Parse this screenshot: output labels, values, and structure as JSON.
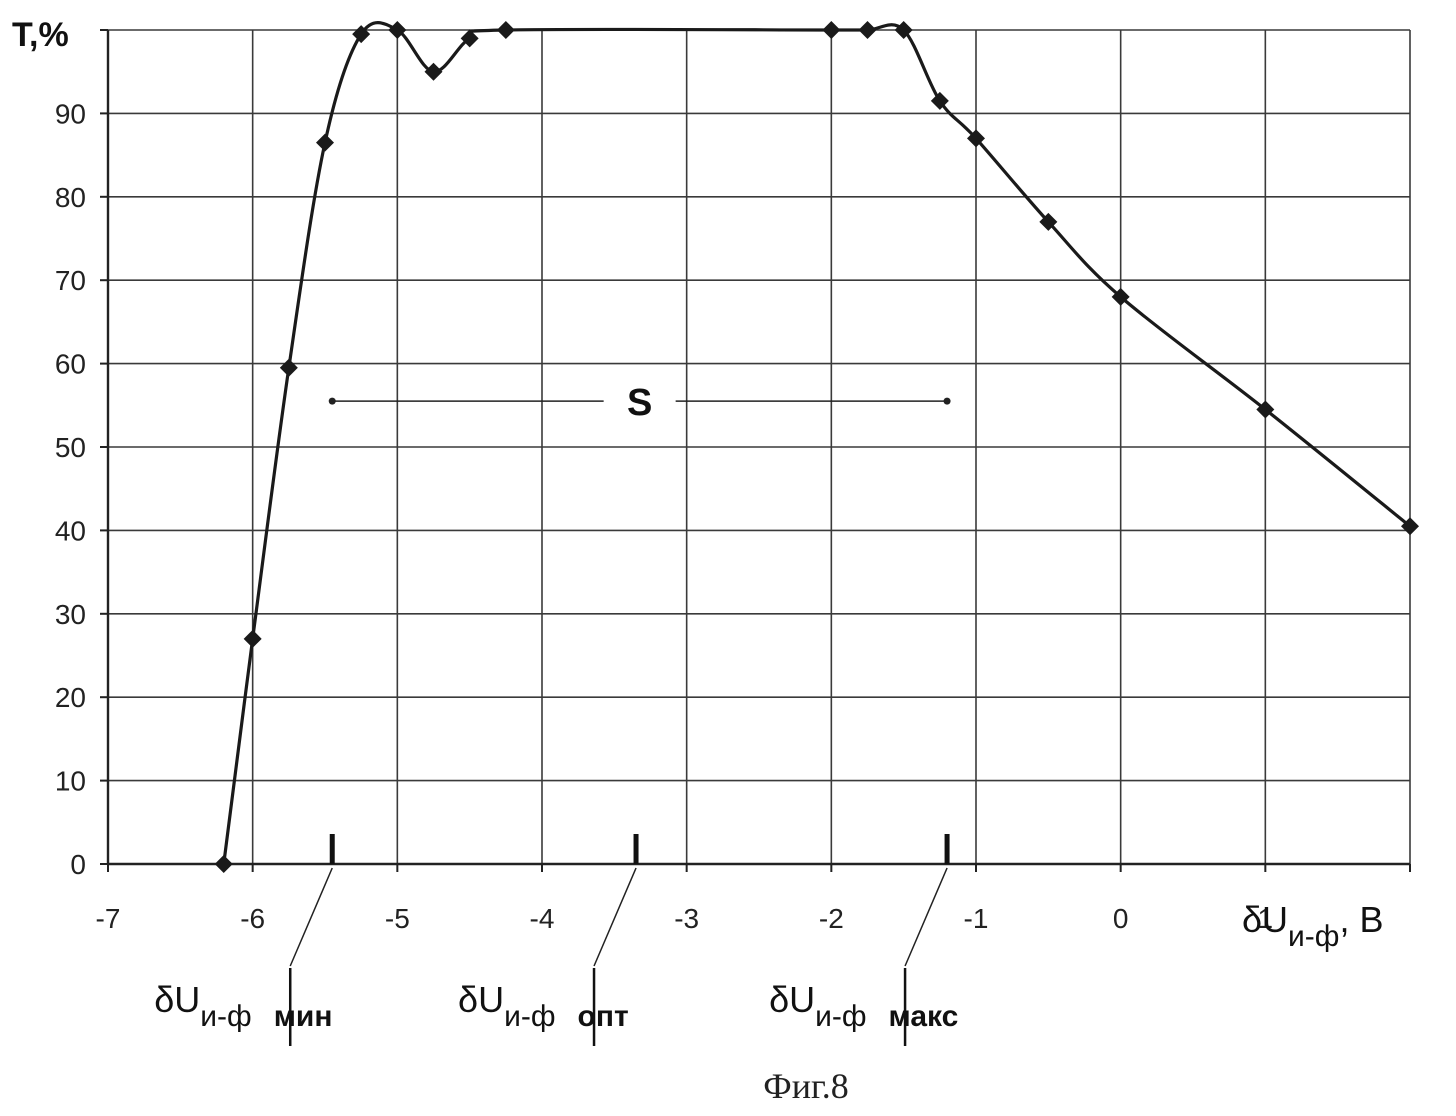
{
  "chart_data": {
    "type": "line",
    "ylabel": "T,%",
    "xlabel": {
      "main": "δU",
      "sub": "и-ф",
      "unit": ", В"
    },
    "xlim": [
      -7,
      2
    ],
    "ylim": [
      0,
      100
    ],
    "x_ticks": [
      "-7",
      "-6",
      "-5",
      "-4",
      "-3",
      "-2",
      "-1",
      "0",
      "1"
    ],
    "y_ticks": [
      "0",
      "10",
      "20",
      "30",
      "40",
      "50",
      "60",
      "70",
      "80",
      "90"
    ],
    "grid": true,
    "series": [
      {
        "x": [
          -6.2,
          -6.0,
          -5.75,
          -5.5,
          -5.25,
          -5.0,
          -4.75,
          -4.5,
          -4.25,
          -2.0,
          -1.75,
          -1.5,
          -1.25,
          -1.0,
          -0.5,
          0.0,
          1.0,
          2.0
        ],
        "y": [
          0,
          27,
          59.5,
          86.5,
          99.5,
          100,
          95,
          99,
          100,
          100,
          100,
          100,
          91.5,
          87,
          77,
          68,
          54.5,
          40.5
        ]
      }
    ],
    "markers": [
      {
        "x": -5.45,
        "main": "δU",
        "sub": "и-ф",
        "suffix": "мин"
      },
      {
        "x": -3.35,
        "main": "δU",
        "sub": "и-ф",
        "suffix": "опт"
      },
      {
        "x": -1.2,
        "main": "δU",
        "sub": "и-ф",
        "suffix": "макс"
      }
    ],
    "range": {
      "label": "S",
      "y": 55.5,
      "x_start": -5.45,
      "x_end": -1.2
    }
  },
  "caption": "Фиг.8"
}
